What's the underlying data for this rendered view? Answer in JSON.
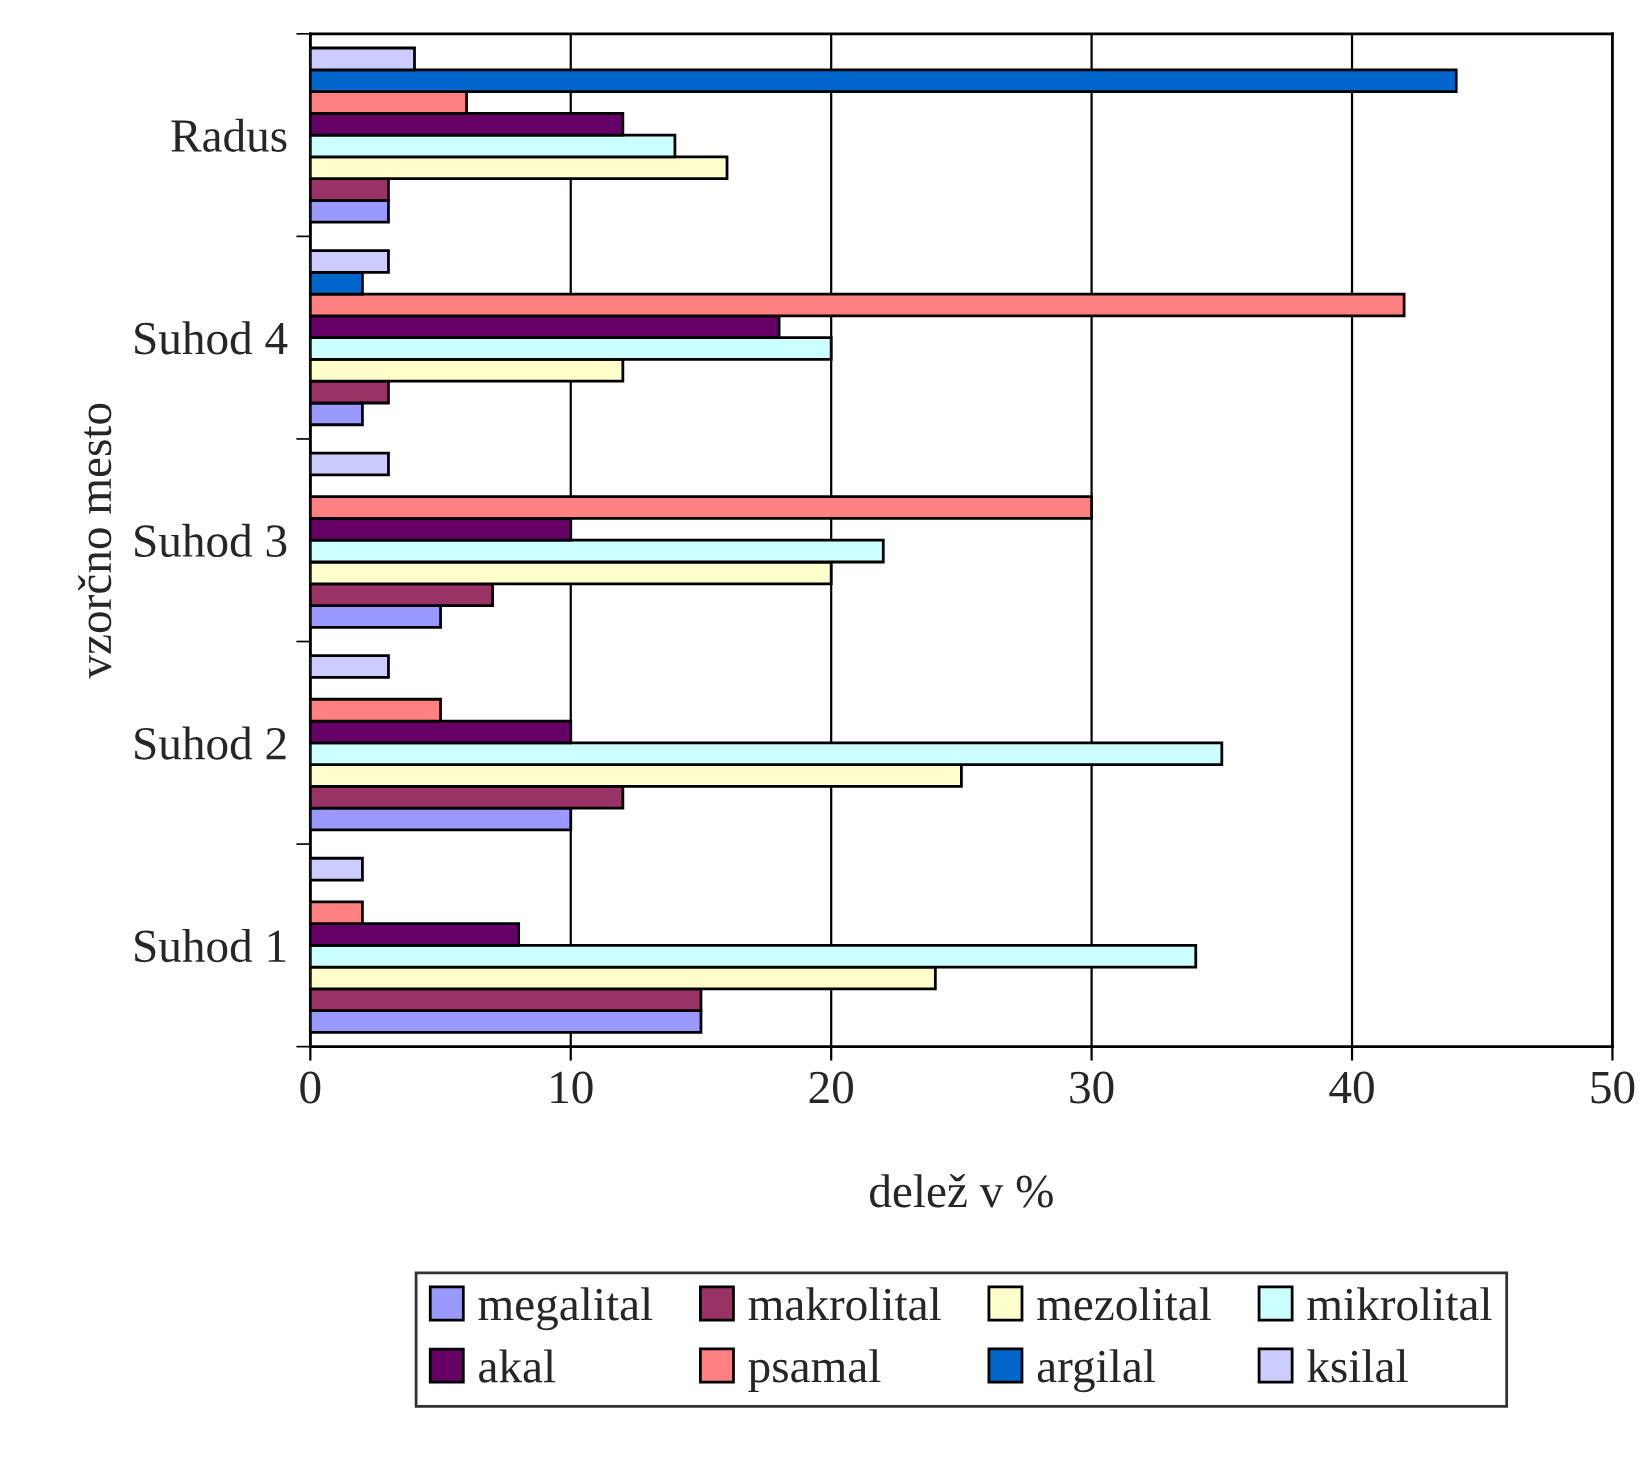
{
  "chart_data": {
    "type": "bar",
    "orientation": "horizontal",
    "xlabel": "delež v %",
    "ylabel": "vzorčno mesto",
    "categories": [
      "Radus",
      "Suhod 4",
      "Suhod 3",
      "Suhod 2",
      "Suhod 1"
    ],
    "series": [
      {
        "name": "megalital",
        "color": "#9999ff",
        "values": [
          3,
          2,
          5,
          10,
          15
        ]
      },
      {
        "name": "makrolital",
        "color": "#993366",
        "values": [
          3,
          3,
          7,
          12,
          15
        ]
      },
      {
        "name": "mezolital",
        "color": "#ffffcc",
        "values": [
          16,
          12,
          20,
          25,
          24
        ]
      },
      {
        "name": "mikrolital",
        "color": "#ccffff",
        "values": [
          14,
          20,
          22,
          35,
          34
        ]
      },
      {
        "name": "akal",
        "color": "#660066",
        "values": [
          12,
          18,
          10,
          10,
          8
        ]
      },
      {
        "name": "psamal",
        "color": "#ff8080",
        "values": [
          6,
          42,
          30,
          5,
          2
        ]
      },
      {
        "name": "argilal",
        "color": "#0066cc",
        "values": [
          44,
          2,
          0,
          0,
          0
        ]
      },
      {
        "name": "ksilal",
        "color": "#ccccff",
        "values": [
          4,
          3,
          3,
          3,
          2
        ]
      }
    ],
    "xlim": [
      0,
      50
    ],
    "xticks": [
      0,
      10,
      20,
      30,
      40,
      50
    ],
    "grid": "x",
    "legend": "bottom"
  }
}
